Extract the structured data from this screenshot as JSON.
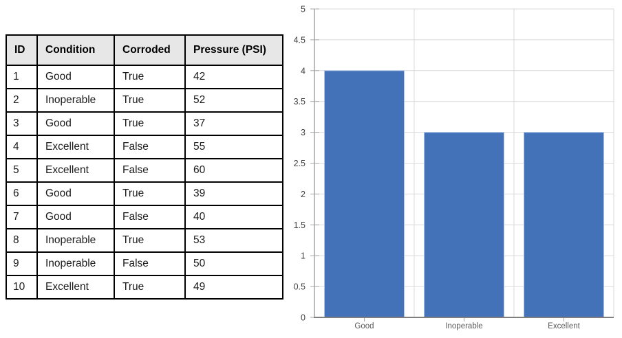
{
  "table": {
    "headers": [
      "ID",
      "Condition",
      "Corroded",
      "Pressure (PSI)"
    ],
    "rows": [
      [
        "1",
        "Good",
        "True",
        "42"
      ],
      [
        "2",
        "Inoperable",
        "True",
        "52"
      ],
      [
        "3",
        "Good",
        "True",
        "37"
      ],
      [
        "4",
        "Excellent",
        "False",
        "55"
      ],
      [
        "5",
        "Excellent",
        "False",
        "60"
      ],
      [
        "6",
        "Good",
        "True",
        "39"
      ],
      [
        "7",
        "Good",
        "False",
        "40"
      ],
      [
        "8",
        "Inoperable",
        "True",
        "53"
      ],
      [
        "9",
        "Inoperable",
        "False",
        "50"
      ],
      [
        "10",
        "Excellent",
        "True",
        "49"
      ]
    ],
    "header_bg": "#E7E7E7",
    "border_color": "#000000"
  },
  "chart_data": {
    "type": "bar",
    "categories": [
      "Good",
      "Inoperable",
      "Excellent"
    ],
    "values": [
      4,
      3,
      3
    ],
    "title": "",
    "xlabel": "",
    "ylabel": "",
    "ylim": [
      0,
      5
    ],
    "ytick_step": 0.5,
    "ytick_labels": [
      "0",
      "0.5",
      "1",
      "1.5",
      "2",
      "2.5",
      "3",
      "3.5",
      "4",
      "4.5",
      "5"
    ],
    "grid": true,
    "legend": "none",
    "bar_color": "#4472B9",
    "bar_border_color": "#AFC4E5",
    "gridline_color": "#D9D9D9",
    "y_axis_color": "#A6A6A6",
    "x_axis_color": "#7F7F7F",
    "tick_color": "#A6A6A6",
    "ytick_label_color": "#404040",
    "xtick_label_color": "#595959"
  }
}
